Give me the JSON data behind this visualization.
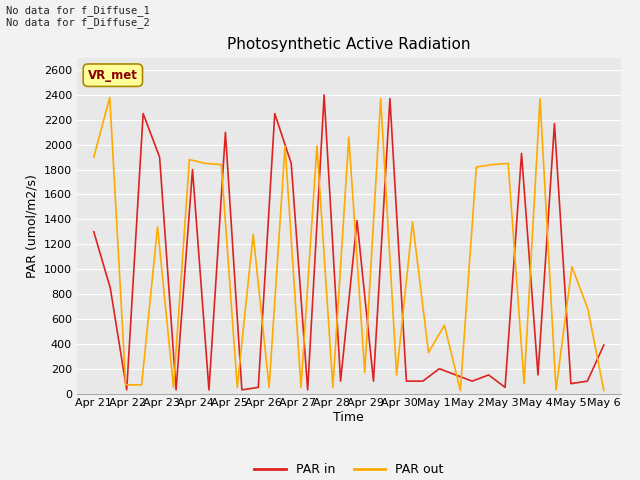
{
  "title": "Photosynthetic Active Radiation",
  "xlabel": "Time",
  "ylabel": "PAR (umol/m2/s)",
  "annotation_text": "No data for f_Diffuse_1\nNo data for f_Diffuse_2",
  "legend_label_text": "VR_met",
  "ylim": [
    0,
    2700
  ],
  "yticks": [
    0,
    200,
    400,
    600,
    800,
    1000,
    1200,
    1400,
    1600,
    1800,
    2000,
    2200,
    2400,
    2600
  ],
  "x_labels": [
    "Apr 21",
    "Apr 22",
    "Apr 23",
    "Apr 24",
    "Apr 25",
    "Apr 26",
    "Apr 27",
    "Apr 28",
    "Apr 29",
    "Apr 30",
    "May 1",
    "May 2",
    "May 3",
    "May 4",
    "May 5",
    "May 6"
  ],
  "par_in": [
    1300,
    850,
    30,
    2250,
    1900,
    30,
    1800,
    30,
    2100,
    30,
    50,
    2250,
    1850,
    30,
    2400,
    100,
    1390,
    100,
    2370,
    100,
    100,
    200,
    150,
    100,
    150,
    50,
    1930,
    150,
    2170,
    80,
    100,
    390
  ],
  "par_out": [
    1900,
    2380,
    70,
    70,
    1340,
    50,
    1880,
    1850,
    1840,
    50,
    1280,
    50,
    1990,
    50,
    1990,
    50,
    2060,
    170,
    2370,
    150,
    1380,
    330,
    550,
    25,
    1820,
    1840,
    1850,
    80,
    2370,
    30,
    1020,
    680,
    25
  ],
  "par_in_color": "#dd2222",
  "par_out_color": "#ffaa00",
  "background_color": "#e8e8e8",
  "fig_background_color": "#f2f2f2",
  "grid_color": "#ffffff",
  "title_fontsize": 11,
  "axis_label_fontsize": 9,
  "tick_fontsize": 8,
  "legend_fontsize": 9
}
